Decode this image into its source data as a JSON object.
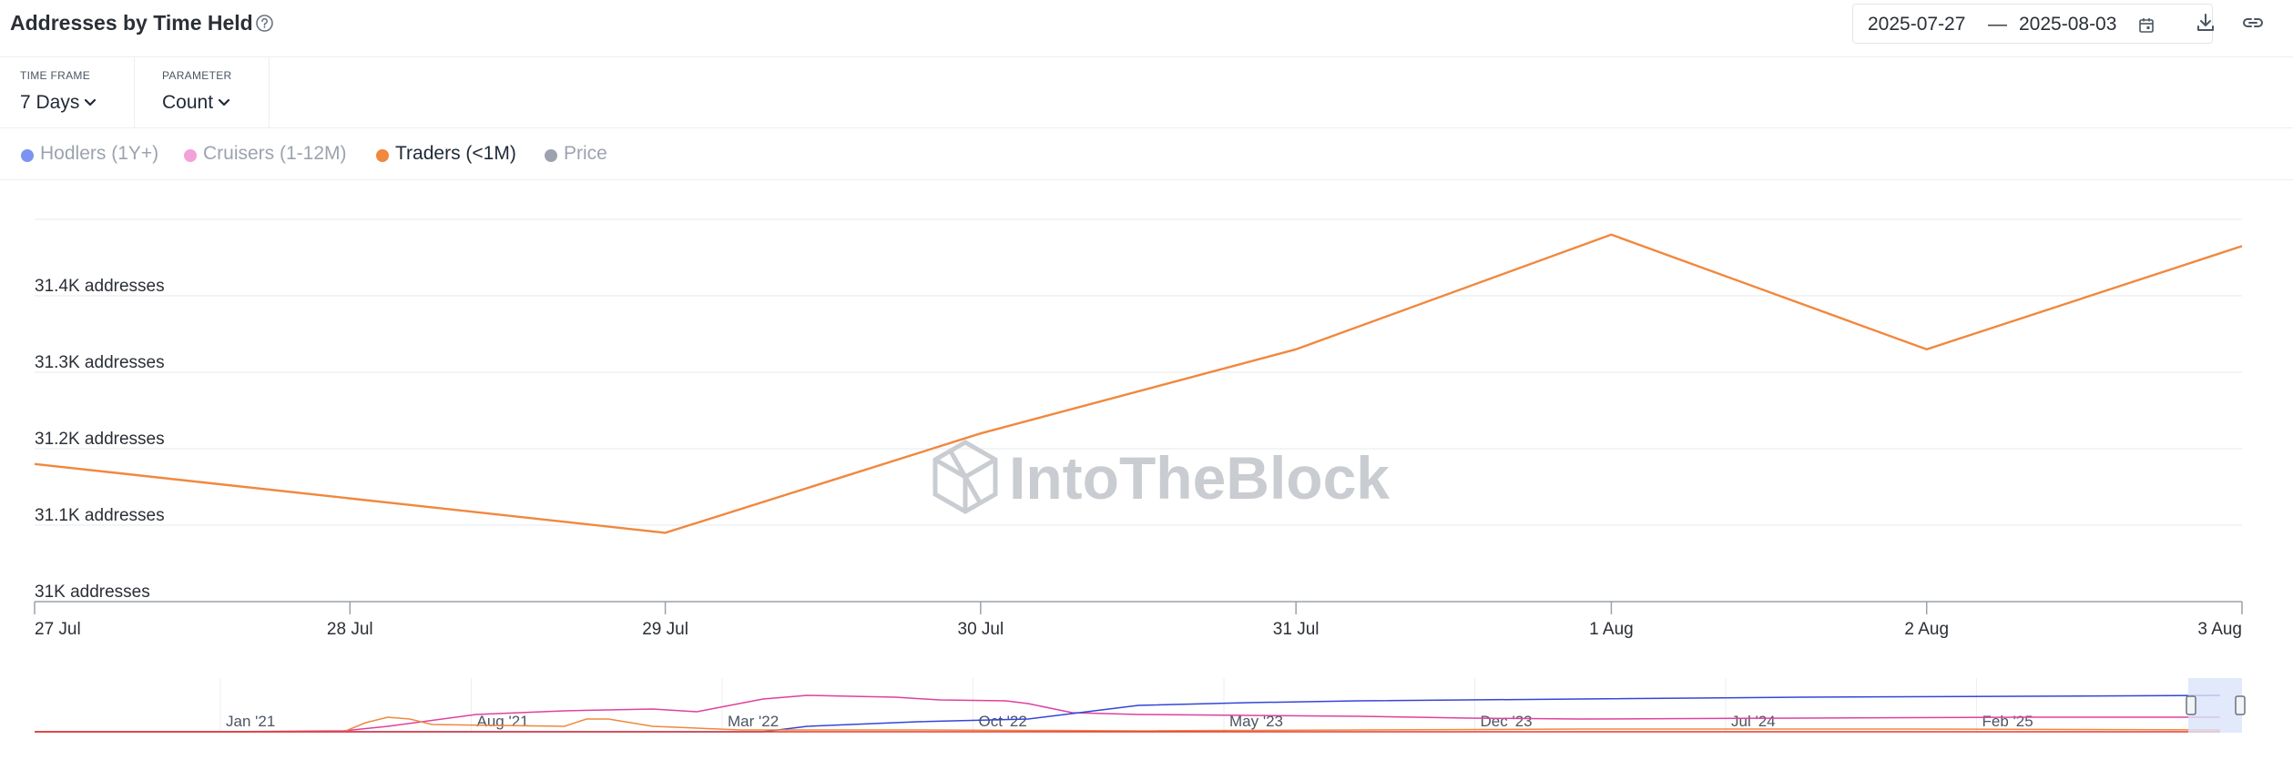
{
  "header": {
    "title": "Addresses by Time Held",
    "date_start": "2025-07-27",
    "date_separator": "—",
    "date_end": "2025-08-03"
  },
  "controls": {
    "time_frame_label": "TIME FRAME",
    "time_frame_value": "7 Days",
    "parameter_label": "PARAMETER",
    "parameter_value": "Count"
  },
  "legend": [
    {
      "label": "Hodlers (1Y+)",
      "color": "#7c93f2",
      "active": false
    },
    {
      "label": "Cruisers (1-12M)",
      "color": "#f2a1d9",
      "active": false
    },
    {
      "label": "Traders (<1M)",
      "color": "#f0883e",
      "active": true
    },
    {
      "label": "Price",
      "color": "#9ca3af",
      "active": false
    }
  ],
  "watermark": "IntoTheBlock",
  "chart_data": {
    "type": "line",
    "x": [
      "27 Jul",
      "28 Jul",
      "29 Jul",
      "30 Jul",
      "31 Jul",
      "1 Aug",
      "2 Aug",
      "3 Aug"
    ],
    "series": [
      {
        "name": "Traders (<1M)",
        "color": "#f0883e",
        "values": [
          31180,
          null,
          31090,
          31220,
          31330,
          31480,
          31330,
          31465
        ]
      }
    ],
    "y_ticks": [
      31000,
      31100,
      31200,
      31300,
      31400
    ],
    "y_tick_labels": [
      "31K addresses",
      "31.1K addresses",
      "31.2K addresses",
      "31.3K addresses",
      "31.4K addresses"
    ],
    "ylim": [
      31000,
      31500
    ],
    "grid": true,
    "navigator": {
      "tick_labels": [
        "Jan '21",
        "Aug '21",
        "Mar '22",
        "Oct '22",
        "May '23",
        "Dec '23",
        "Jul '24",
        "Feb '25"
      ],
      "series_colors": {
        "hodlers": "#3346d6",
        "cruisers": "#e0409e",
        "traders": "#f0883e",
        "price": "#e53935"
      }
    }
  }
}
